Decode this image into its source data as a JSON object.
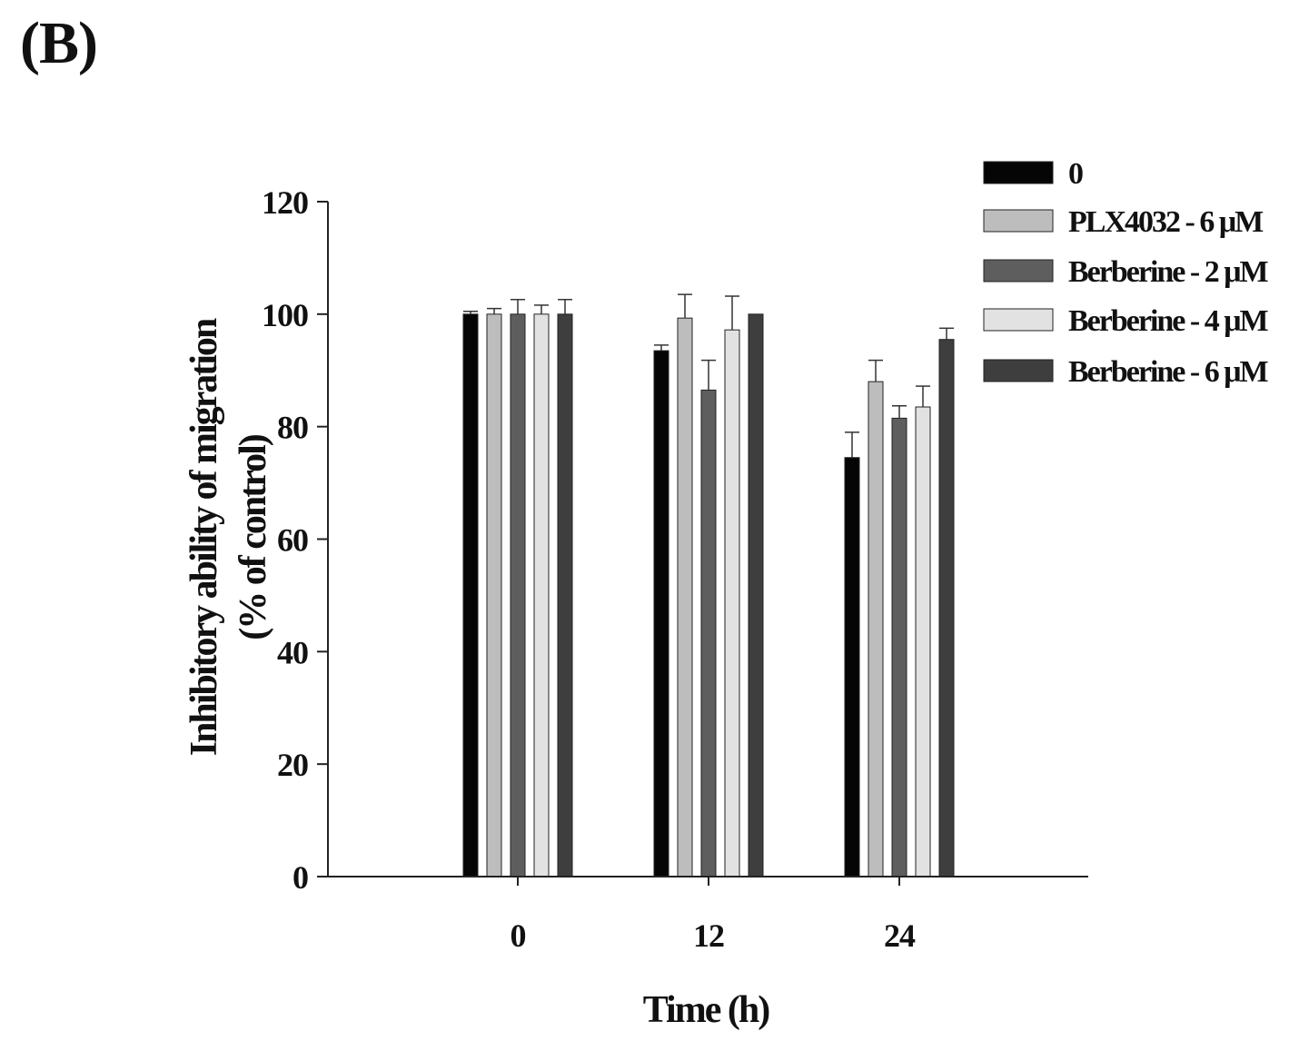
{
  "panel_label": "(B)",
  "chart_data": {
    "type": "bar",
    "title": "",
    "xlabel": "Time (h)",
    "ylabel": "Inhibitory ability of migration",
    "ylabel_line2": "(% of control)",
    "categories": [
      "0",
      "12",
      "24"
    ],
    "ylim": [
      0,
      120
    ],
    "yticks": [
      0,
      20,
      40,
      60,
      80,
      100,
      120
    ],
    "ytick_labels": [
      "0",
      "20",
      "40",
      "60",
      "80",
      "100",
      "120"
    ],
    "grid": false,
    "legend_position": "top-right",
    "error_bars": "upper",
    "series": [
      {
        "name": "0",
        "color": "#050505",
        "values": [
          100,
          93.5,
          74.5
        ],
        "errors": [
          0.5,
          1.0,
          4.5
        ]
      },
      {
        "name": "PLX4032 - 6 μM",
        "color": "#bdbdbd",
        "values": [
          100,
          99.3,
          88
        ],
        "errors": [
          1.0,
          4.2,
          3.8
        ]
      },
      {
        "name": "Berberine - 2 μM",
        "color": "#5e5e5e",
        "values": [
          100,
          86.5,
          81.5
        ],
        "errors": [
          2.6,
          5.3,
          2.2
        ]
      },
      {
        "name": "Berberine - 4 μM",
        "color": "#e2e2e2",
        "values": [
          100,
          97.2,
          83.5
        ],
        "errors": [
          1.6,
          6.0,
          3.7
        ]
      },
      {
        "name": "Berberine - 6 μM",
        "color": "#3e3e3e",
        "values": [
          100,
          100,
          95.5
        ],
        "errors": [
          2.6,
          0.0,
          2.0
        ]
      }
    ]
  }
}
